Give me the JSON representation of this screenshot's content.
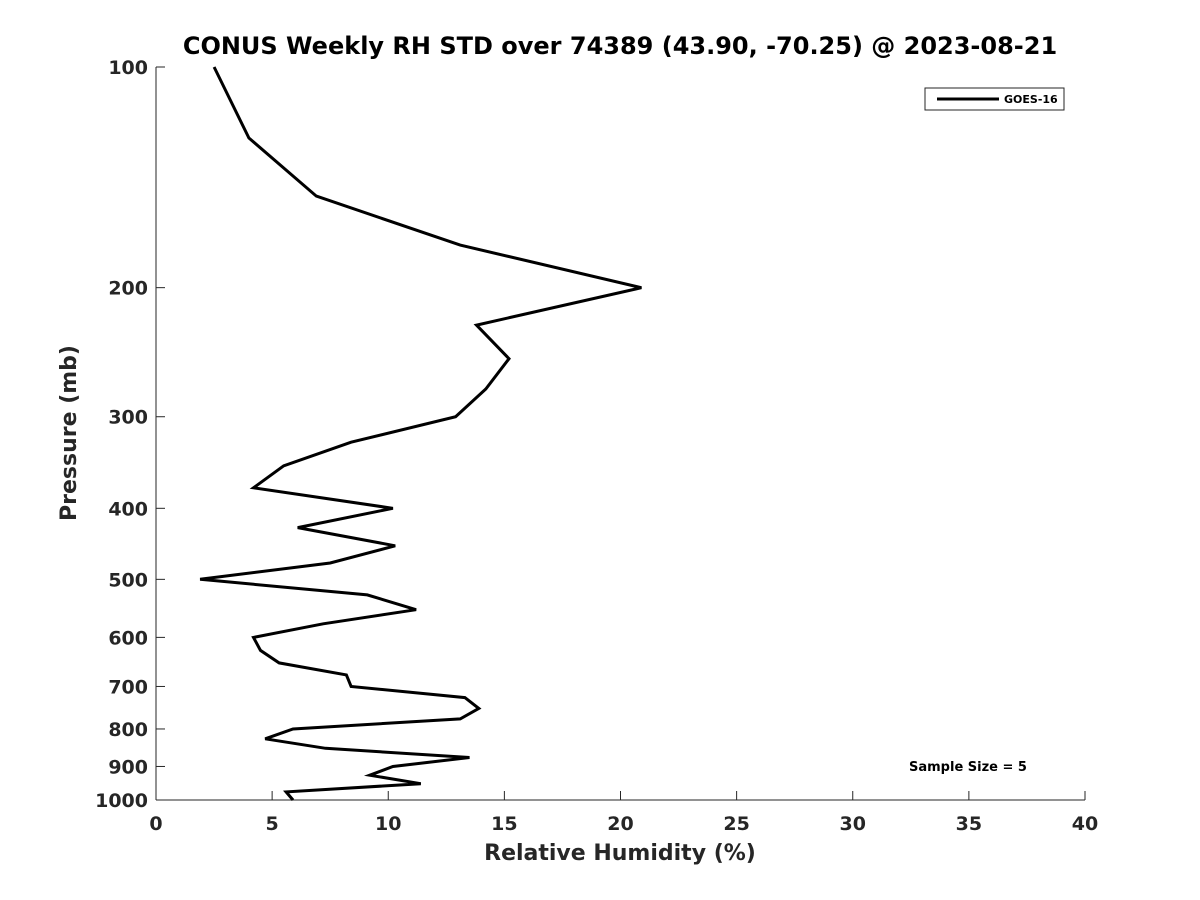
{
  "chart_data": {
    "type": "line",
    "title": "CONUS Weekly RH STD over 74389 (43.90, -70.25) @ 2023-08-21",
    "xlabel": "Relative Humidity (%)",
    "ylabel": "Pressure (mb)",
    "xlim": [
      0,
      40
    ],
    "ylim": [
      100,
      1000
    ],
    "yscale": "log",
    "y_reversed": true,
    "grid": false,
    "legend_position": "top-right",
    "xticks": [
      0,
      5,
      10,
      15,
      20,
      25,
      30,
      35,
      40
    ],
    "yticks": [
      100,
      200,
      300,
      400,
      500,
      600,
      700,
      800,
      900,
      1000
    ],
    "series": [
      {
        "name": "GOES-16",
        "color": "#000000",
        "points": [
          {
            "x": 2.5,
            "y": 100
          },
          {
            "x": 4.0,
            "y": 125
          },
          {
            "x": 6.9,
            "y": 150
          },
          {
            "x": 13.1,
            "y": 175
          },
          {
            "x": 20.9,
            "y": 200
          },
          {
            "x": 13.8,
            "y": 225
          },
          {
            "x": 15.2,
            "y": 250
          },
          {
            "x": 14.2,
            "y": 275
          },
          {
            "x": 12.9,
            "y": 300
          },
          {
            "x": 8.4,
            "y": 325
          },
          {
            "x": 5.5,
            "y": 350
          },
          {
            "x": 4.2,
            "y": 375
          },
          {
            "x": 10.2,
            "y": 400
          },
          {
            "x": 6.1,
            "y": 425
          },
          {
            "x": 10.3,
            "y": 450
          },
          {
            "x": 7.5,
            "y": 475
          },
          {
            "x": 1.9,
            "y": 500
          },
          {
            "x": 9.1,
            "y": 525
          },
          {
            "x": 11.2,
            "y": 550
          },
          {
            "x": 7.2,
            "y": 575
          },
          {
            "x": 4.2,
            "y": 600
          },
          {
            "x": 4.5,
            "y": 625
          },
          {
            "x": 5.3,
            "y": 650
          },
          {
            "x": 8.2,
            "y": 675
          },
          {
            "x": 8.4,
            "y": 700
          },
          {
            "x": 13.3,
            "y": 725
          },
          {
            "x": 13.9,
            "y": 750
          },
          {
            "x": 13.1,
            "y": 775
          },
          {
            "x": 5.9,
            "y": 800
          },
          {
            "x": 4.7,
            "y": 825
          },
          {
            "x": 7.3,
            "y": 850
          },
          {
            "x": 13.5,
            "y": 875
          },
          {
            "x": 10.2,
            "y": 900
          },
          {
            "x": 9.2,
            "y": 925
          },
          {
            "x": 11.4,
            "y": 950
          },
          {
            "x": 5.6,
            "y": 975
          },
          {
            "x": 5.9,
            "y": 1000
          }
        ]
      }
    ],
    "annotations": [
      "Sample Size = 5"
    ]
  }
}
